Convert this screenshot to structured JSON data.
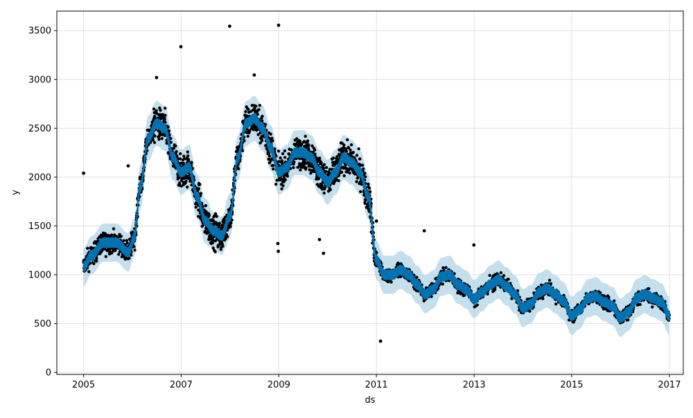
{
  "chart_data": {
    "type": "scatter",
    "title": "",
    "xlabel": "ds",
    "ylabel": "y",
    "xlim": [
      "2004-06-15",
      "2017-04-15"
    ],
    "ylim": [
      -20,
      3700
    ],
    "x_ticks": [
      "2005",
      "2007",
      "2009",
      "2011",
      "2013",
      "2015",
      "2017"
    ],
    "y_ticks": [
      0,
      500,
      1000,
      1500,
      2000,
      2500,
      3000,
      3500
    ],
    "grid": true,
    "legend": "none",
    "colors": {
      "points": "#000000",
      "forecast_line": "#0072B2",
      "uncertainty_band": "#a6cee3",
      "grid": "#e0e0e0"
    },
    "series": [
      {
        "kind": "observed_points",
        "x_range": [
          "2005-01-01",
          "2016-12-31"
        ],
        "noise_profile": [
          {
            "from": "2005-01-01",
            "to": "2006-06-01",
            "spread": 120
          },
          {
            "from": "2006-06-01",
            "to": "2011-01-01",
            "spread": 190
          },
          {
            "from": "2011-01-01",
            "to": "2016-12-31",
            "spread": 70
          }
        ],
        "outliers": [
          {
            "x": "2005-01-01",
            "y": 2040
          },
          {
            "x": "2005-12-01",
            "y": 2115
          },
          {
            "x": "2006-12-30",
            "y": 3335
          },
          {
            "x": "2007-12-30",
            "y": 3545
          },
          {
            "x": "2008-12-30",
            "y": 3555
          },
          {
            "x": "2008-12-25",
            "y": 1320
          },
          {
            "x": "2008-12-28",
            "y": 1240
          },
          {
            "x": "2009-11-01",
            "y": 1360
          },
          {
            "x": "2009-12-01",
            "y": 1220
          },
          {
            "x": "2011-01-01",
            "y": 1550
          },
          {
            "x": "2011-02-01",
            "y": 320
          },
          {
            "x": "2011-12-25",
            "y": 1450
          },
          {
            "x": "2012-12-30",
            "y": 1305
          },
          {
            "x": "2006-07-01",
            "y": 3020
          },
          {
            "x": "2008-07-01",
            "y": 3045
          }
        ]
      },
      {
        "kind": "forecast_trend",
        "x": [
          "2005-01-01",
          "2005-03-01",
          "2005-06-01",
          "2005-09-01",
          "2005-12-01",
          "2006-01-15",
          "2006-03-01",
          "2006-05-01",
          "2006-07-01",
          "2006-09-01",
          "2006-11-01",
          "2007-01-01",
          "2007-03-01",
          "2007-05-01",
          "2007-07-01",
          "2007-09-01",
          "2007-11-01",
          "2008-01-01",
          "2008-03-01",
          "2008-05-01",
          "2008-07-01",
          "2008-09-01",
          "2008-11-01",
          "2009-01-01",
          "2009-03-01",
          "2009-05-01",
          "2009-07-01",
          "2009-09-01",
          "2009-11-01",
          "2010-01-01",
          "2010-03-01",
          "2010-05-01",
          "2010-07-01",
          "2010-09-01",
          "2010-11-01",
          "2011-01-01",
          "2011-03-01",
          "2011-05-01",
          "2011-07-01",
          "2011-09-01",
          "2011-11-01",
          "2012-01-01",
          "2012-03-01",
          "2012-05-01",
          "2012-07-01",
          "2012-09-01",
          "2012-11-01",
          "2013-01-01",
          "2013-03-01",
          "2013-05-01",
          "2013-07-01",
          "2013-09-01",
          "2013-11-01",
          "2014-01-01",
          "2014-03-01",
          "2014-05-01",
          "2014-07-01",
          "2014-09-01",
          "2014-11-01",
          "2015-01-01",
          "2015-03-01",
          "2015-05-01",
          "2015-07-01",
          "2015-09-01",
          "2015-11-01",
          "2016-01-01",
          "2016-03-01",
          "2016-05-01",
          "2016-07-01",
          "2016-09-01",
          "2016-11-01",
          "2017-01-01"
        ],
        "y": [
          1080,
          1200,
          1330,
          1330,
          1230,
          1380,
          1900,
          2400,
          2550,
          2500,
          2200,
          2050,
          2100,
          1800,
          1550,
          1450,
          1400,
          1600,
          2200,
          2550,
          2600,
          2500,
          2300,
          2050,
          2100,
          2250,
          2250,
          2200,
          2050,
          1950,
          2050,
          2200,
          2150,
          2050,
          1800,
          1150,
          1000,
          1000,
          1050,
          1000,
          900,
          800,
          850,
          980,
          1000,
          900,
          850,
          750,
          820,
          900,
          950,
          880,
          800,
          660,
          700,
          820,
          860,
          800,
          730,
          580,
          640,
          760,
          780,
          720,
          680,
          560,
          620,
          760,
          800,
          760,
          720,
          580
        ],
        "band_halfwidth": 230
      }
    ]
  }
}
